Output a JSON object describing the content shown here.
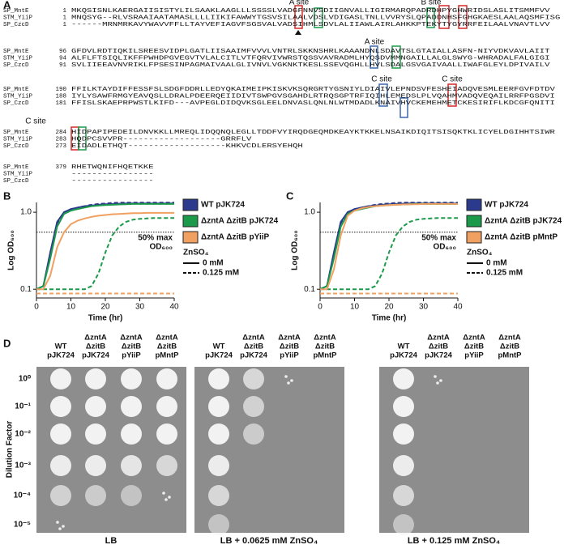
{
  "panels": {
    "a": "A",
    "b": "B",
    "c": "C",
    "d": "D"
  },
  "alignment": {
    "blocks": [
      {
        "rows": [
          {
            "name": "SP_MntE",
            "start": 1,
            "seq": "MKQSISNLKAERGAIISISTYLILSAAKLAAGLLLSSSSLVADGFNNVSDIIGNVALLIGIRMARQPADRDHPYGHWRIDSLASLITSMMFVV"
          },
          {
            "name": "STM_YiiP",
            "start": 1,
            "seq": "MNQSYG--RLVSRAAIAATAMASLLLLIIKIFAWWYTGSVSILAALVDSLVDIGASLTNLLVVRYSLQPADDNHSFGHGKAESLAALAQSMFISG"
          },
          {
            "name": "SP_CzcD",
            "start": 1,
            "seq": "------MRNMRKAVYWAVVFFLLTAYVEFIAGVFSGSVALVADSIHMLSDVLALIIAWLAIRLAHKKPTEKYTYGYRRFEILAALVNAVTLVV"
          }
        ]
      },
      {
        "rows": [
          {
            "name": "SP_MntE",
            "start": 96,
            "seq": "GFDVLRDTIQKILSREESVIDPLGATLIISAAIMFVVVLVNTRLSKKNSHRLKAAANDNLSDAVTSLGTAIALLASFN-NIYVDKVAVLAIIT"
          },
          {
            "name": "STM_YiiP",
            "start": 94,
            "seq": "ALFLFTSIQLIKFFPWHDPGVEGVTVLALCITLVTFQRVIVWRSTQSSVAVRADMLHYQSDVMMNGAILLALGLSWYG-WHRADALFALGIGI"
          },
          {
            "name": "SP_CzcD",
            "start": 91,
            "seq": "SVLIIEEAVNVRIKLFPSESINPAGMAIVAALGLIVNVLVGKNKTKESLSSEVQGHLLHVLSDALGSVGAIVAALLIWAFGLEYLDPIVAILV"
          }
        ]
      },
      {
        "rows": [
          {
            "name": "SP_MntE",
            "start": 190,
            "seq": "FFILKTAYDIFFESSFSLSDGFDDRLLEDYQKAIMEIPKISKVKSQRGRTYGSNIYLDIAIVLEPNDSVFESHEIADQVESMLEERFGVFDTDV"
          },
          {
            "name": "STM_YiiP",
            "start": 188,
            "seq": "IYLYSAWFRMGYEAVQSLLDRALPDEERQEIIDIVTSWPGVSGAHDLRTRQSGPTRFIQIHLEMEDSLPLVQAHMVADQVEQAILRRFPGSDVI"
          },
          {
            "name": "SP_CzcD",
            "start": 181,
            "seq": "FFISLSKAEPRPWSTLKIFD---AVPEGLDIDQVKSGLEELDNVASLQNLNLWTMDADLKNAIVHVCKEMEHMETCKESIRIFLKDCGFQNITI"
          }
        ]
      },
      {
        "rows": [
          {
            "name": "SP_MntE",
            "start": 284,
            "seq": "HIDPAPIPEDEILDNVKKLLMREQLIDQQNQLEGLLTDDFVYIRQDGEQMDKEAYKTKKELNSAIKDIQITSISQKTKLICYELDGIHHTSIWR"
          },
          {
            "name": "STM_YiiP",
            "start": 283,
            "seq": "HQDPCSVVPR-------------------GRRFLV"
          },
          {
            "name": "SP_CzcD",
            "start": 273,
            "seq": "EIDADLETHQT-------------------KHKVCDLERSYEHQH"
          }
        ]
      },
      {
        "rows": [
          {
            "name": "SP_MntE",
            "start": 379,
            "seq": "RHETWQNIFHQETKKE"
          },
          {
            "name": "STM_YiiP",
            "seq": "----------------"
          },
          {
            "name": "SP_CzcD",
            "seq": "----------------"
          }
        ]
      }
    ],
    "site_labels": [
      "A site",
      "B site",
      "A site",
      "C site",
      "C site",
      "C site"
    ]
  },
  "chart_data": [
    {
      "type": "line",
      "xlabel": "Time (hr)",
      "ylabel": "Log OD₆₀₀",
      "x": [
        0,
        2,
        4,
        6,
        8,
        10,
        12,
        14,
        16,
        18,
        20,
        22,
        24,
        26,
        28,
        30,
        32,
        34,
        36,
        38,
        40
      ],
      "xlim": [
        0,
        40
      ],
      "xticks": [
        0,
        10,
        20,
        30,
        40
      ],
      "ylim": [
        0.077,
        1.34
      ],
      "yticks": [
        0.1,
        {
          "value": 1,
          "label": "1.0"
        }
      ],
      "log_y": true,
      "hline": {
        "value": 0.55,
        "label": [
          "50% max",
          "OD₆₀₀"
        ]
      },
      "linestyles": {
        "title": "ZnSO₄",
        "labels": [
          "0 mM",
          "0.125 mM"
        ],
        "dash": [
          false,
          true
        ]
      },
      "series": [
        {
          "name": "WT pJK724",
          "color": "#2b3a8c",
          "lines": [
            {
              "values": [
                0.1,
                0.11,
                0.3,
                0.75,
                1.0,
                1.1,
                1.15,
                1.2,
                1.22,
                1.25,
                1.27,
                1.28,
                1.29,
                1.3,
                1.3,
                1.3,
                1.3,
                1.3,
                1.3,
                1.3,
                1.3
              ]
            },
            {
              "values": [
                0.1,
                0.11,
                0.28,
                0.72,
                1.0,
                1.1,
                1.15,
                1.2,
                1.25,
                1.28,
                1.3,
                1.32,
                1.33,
                1.33,
                1.33,
                1.33,
                1.33,
                1.33,
                1.33,
                1.33,
                1.33
              ]
            }
          ]
        },
        {
          "name": "ΔzntA ΔzitB pJK724",
          "color": "#1b9a4a",
          "lines": [
            {
              "values": [
                0.1,
                0.11,
                0.25,
                0.65,
                0.95,
                1.05,
                1.1,
                1.15,
                1.2,
                1.22,
                1.24,
                1.25,
                1.26,
                1.27,
                1.28,
                1.28,
                1.28,
                1.28,
                1.28,
                1.28,
                1.28
              ]
            },
            {
              "values": [
                0.1,
                0.1,
                0.1,
                0.1,
                0.1,
                0.1,
                0.1,
                0.1,
                0.11,
                0.16,
                0.3,
                0.5,
                0.65,
                0.75,
                0.8,
                0.82,
                0.83,
                0.84,
                0.84,
                0.84,
                0.84
              ]
            }
          ]
        },
        {
          "name": "ΔzntA ΔzitB pYiiP",
          "color": "#f0a060",
          "lines": [
            {
              "values": [
                0.1,
                0.1,
                0.15,
                0.35,
                0.55,
                0.7,
                0.78,
                0.83,
                0.87,
                0.9,
                0.92,
                0.94,
                0.95,
                0.96,
                0.97,
                0.97,
                0.98,
                0.98,
                0.98,
                0.98,
                0.98
              ]
            },
            {
              "values": [
                0.088,
                0.088,
                0.088,
                0.088,
                0.088,
                0.088,
                0.088,
                0.088,
                0.088,
                0.088,
                0.088,
                0.088,
                0.088,
                0.088,
                0.088,
                0.088,
                0.088,
                0.088,
                0.088,
                0.088,
                0.088
              ]
            }
          ]
        }
      ]
    },
    {
      "type": "line",
      "xlabel": "Time (hr)",
      "ylabel": "Log OD₆₀₀",
      "x": [
        0,
        2,
        4,
        6,
        8,
        10,
        12,
        14,
        16,
        18,
        20,
        22,
        24,
        26,
        28,
        30,
        32,
        34,
        36,
        38,
        40
      ],
      "xlim": [
        0,
        40
      ],
      "xticks": [
        0,
        10,
        20,
        30,
        40
      ],
      "ylim": [
        0.077,
        1.34
      ],
      "yticks": [
        0.1,
        {
          "value": 1,
          "label": "1.0"
        }
      ],
      "log_y": true,
      "hline": {
        "value": 0.55,
        "label": [
          "50% max",
          "OD₆₀₀"
        ]
      },
      "linestyles": {
        "title": "ZnSO₄",
        "labels": [
          "0 mM",
          "0.125 mM"
        ],
        "dash": [
          false,
          true
        ]
      },
      "series": [
        {
          "name": "WT pJK724",
          "color": "#2b3a8c",
          "lines": [
            {
              "values": [
                0.1,
                0.11,
                0.3,
                0.75,
                1.0,
                1.1,
                1.15,
                1.2,
                1.22,
                1.25,
                1.27,
                1.28,
                1.29,
                1.3,
                1.3,
                1.3,
                1.3,
                1.3,
                1.3,
                1.3,
                1.3
              ]
            },
            {
              "values": [
                0.1,
                0.11,
                0.28,
                0.72,
                1.0,
                1.1,
                1.15,
                1.2,
                1.25,
                1.28,
                1.3,
                1.32,
                1.33,
                1.33,
                1.33,
                1.33,
                1.33,
                1.33,
                1.33,
                1.33,
                1.33
              ]
            }
          ]
        },
        {
          "name": "ΔzntA ΔzitB pJK724",
          "color": "#1b9a4a",
          "lines": [
            {
              "values": [
                0.1,
                0.11,
                0.25,
                0.65,
                0.95,
                1.05,
                1.1,
                1.15,
                1.2,
                1.22,
                1.24,
                1.25,
                1.26,
                1.27,
                1.28,
                1.28,
                1.28,
                1.28,
                1.28,
                1.28,
                1.28
              ]
            },
            {
              "values": [
                0.1,
                0.1,
                0.1,
                0.1,
                0.1,
                0.1,
                0.1,
                0.1,
                0.11,
                0.16,
                0.3,
                0.5,
                0.65,
                0.75,
                0.8,
                0.82,
                0.83,
                0.84,
                0.84,
                0.84,
                0.84
              ]
            }
          ]
        },
        {
          "name": "ΔzntA ΔzitB pMntP",
          "color": "#f0a060",
          "lines": [
            {
              "values": [
                0.1,
                0.1,
                0.18,
                0.5,
                0.9,
                1.05,
                1.12,
                1.17,
                1.2,
                1.22,
                1.24,
                1.25,
                1.26,
                1.27,
                1.27,
                1.28,
                1.28,
                1.28,
                1.28,
                1.28,
                1.28
              ]
            },
            {
              "values": [
                0.088,
                0.088,
                0.088,
                0.088,
                0.088,
                0.088,
                0.088,
                0.088,
                0.088,
                0.088,
                0.088,
                0.088,
                0.088,
                0.088,
                0.088,
                0.088,
                0.088,
                0.088,
                0.088,
                0.088,
                0.088
              ]
            }
          ]
        }
      ]
    }
  ],
  "spot_assay": {
    "ylabel": "Dilution Factor",
    "row_labels": [
      "10⁰",
      "10⁻¹",
      "10⁻²",
      "10⁻³",
      "10⁻⁴",
      "10⁻⁵"
    ],
    "columns": [
      [
        "WT",
        "pJK724"
      ],
      [
        "ΔzntA",
        "ΔzitB",
        "pJK724"
      ],
      [
        "ΔzntA",
        "ΔzitB",
        "pYiiP"
      ],
      [
        "ΔzntA",
        "ΔzitB",
        "pMntP"
      ]
    ],
    "plates": [
      "LB",
      "LB + 0.0625 mM ZnSO₄",
      "LB + 0.125 mM ZnSO₄"
    ]
  }
}
